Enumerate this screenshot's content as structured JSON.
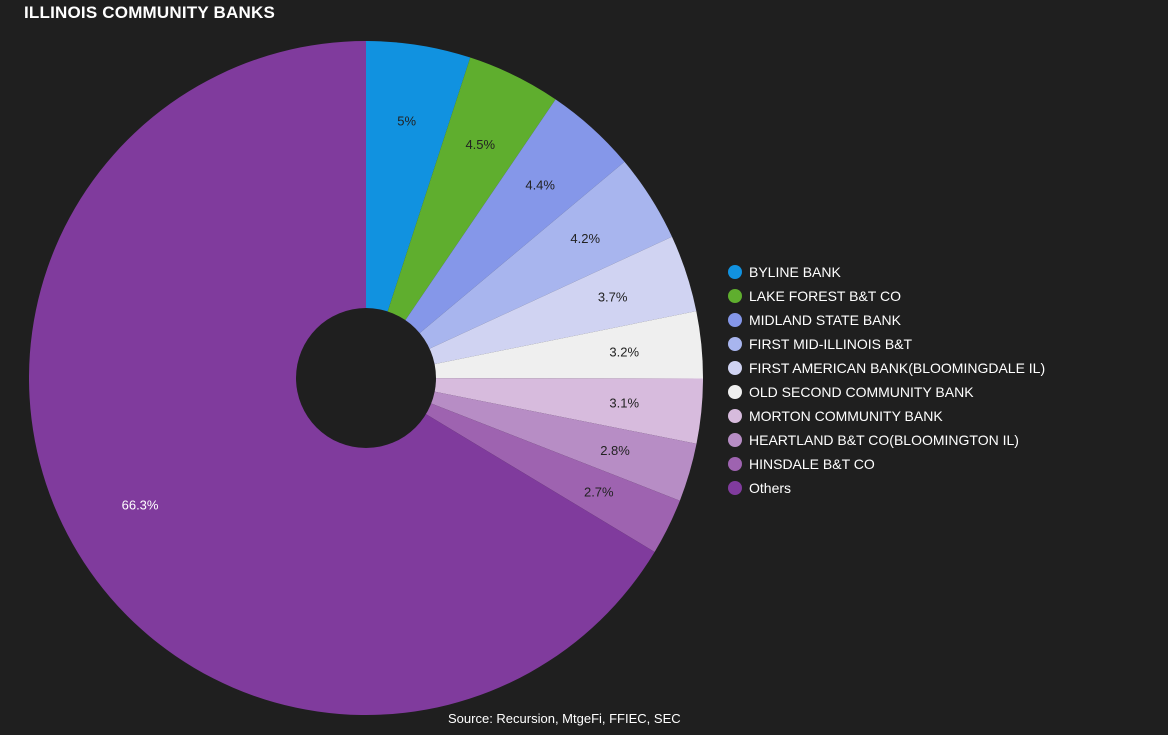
{
  "title": "ILLINOIS COMMUNITY BANKS",
  "source": "Source: Recursion, MtgeFi, FFIEC, SEC",
  "chart_data": {
    "type": "pie",
    "title": "ILLINOIS COMMUNITY BANKS",
    "legend_position": "right",
    "categories": [
      "BYLINE BANK",
      "LAKE FOREST B&T CO",
      "MIDLAND STATE BANK",
      "FIRST MID-ILLINOIS B&T",
      "FIRST AMERICAN BANK(BLOOMINGDALE IL)",
      "OLD SECOND COMMUNITY BANK",
      "MORTON COMMUNITY BANK",
      "HEARTLAND B&T CO(BLOOMINGTON IL)",
      "HINSDALE B&T CO",
      "Others"
    ],
    "values": [
      5,
      4.5,
      4.4,
      4.2,
      3.7,
      3.2,
      3.1,
      2.8,
      2.7,
      66.3
    ],
    "labels": [
      "5%",
      "4.5%",
      "4.4%",
      "4.2%",
      "3.7%",
      "3.2%",
      "3.1%",
      "2.8%",
      "2.7%",
      "66.3%"
    ],
    "colors": [
      "#1192e0",
      "#5fae2e",
      "#8597e9",
      "#a8b5ee",
      "#d0d3f2",
      "#efefef",
      "#d7bbdd",
      "#b78dc5",
      "#9e63b0",
      "#803b9d"
    ],
    "label_colors": [
      "#222222",
      "#222222",
      "#222222",
      "#222222",
      "#222222",
      "#222222",
      "#222222",
      "#222222",
      "#222222",
      "#ffffff"
    ]
  }
}
